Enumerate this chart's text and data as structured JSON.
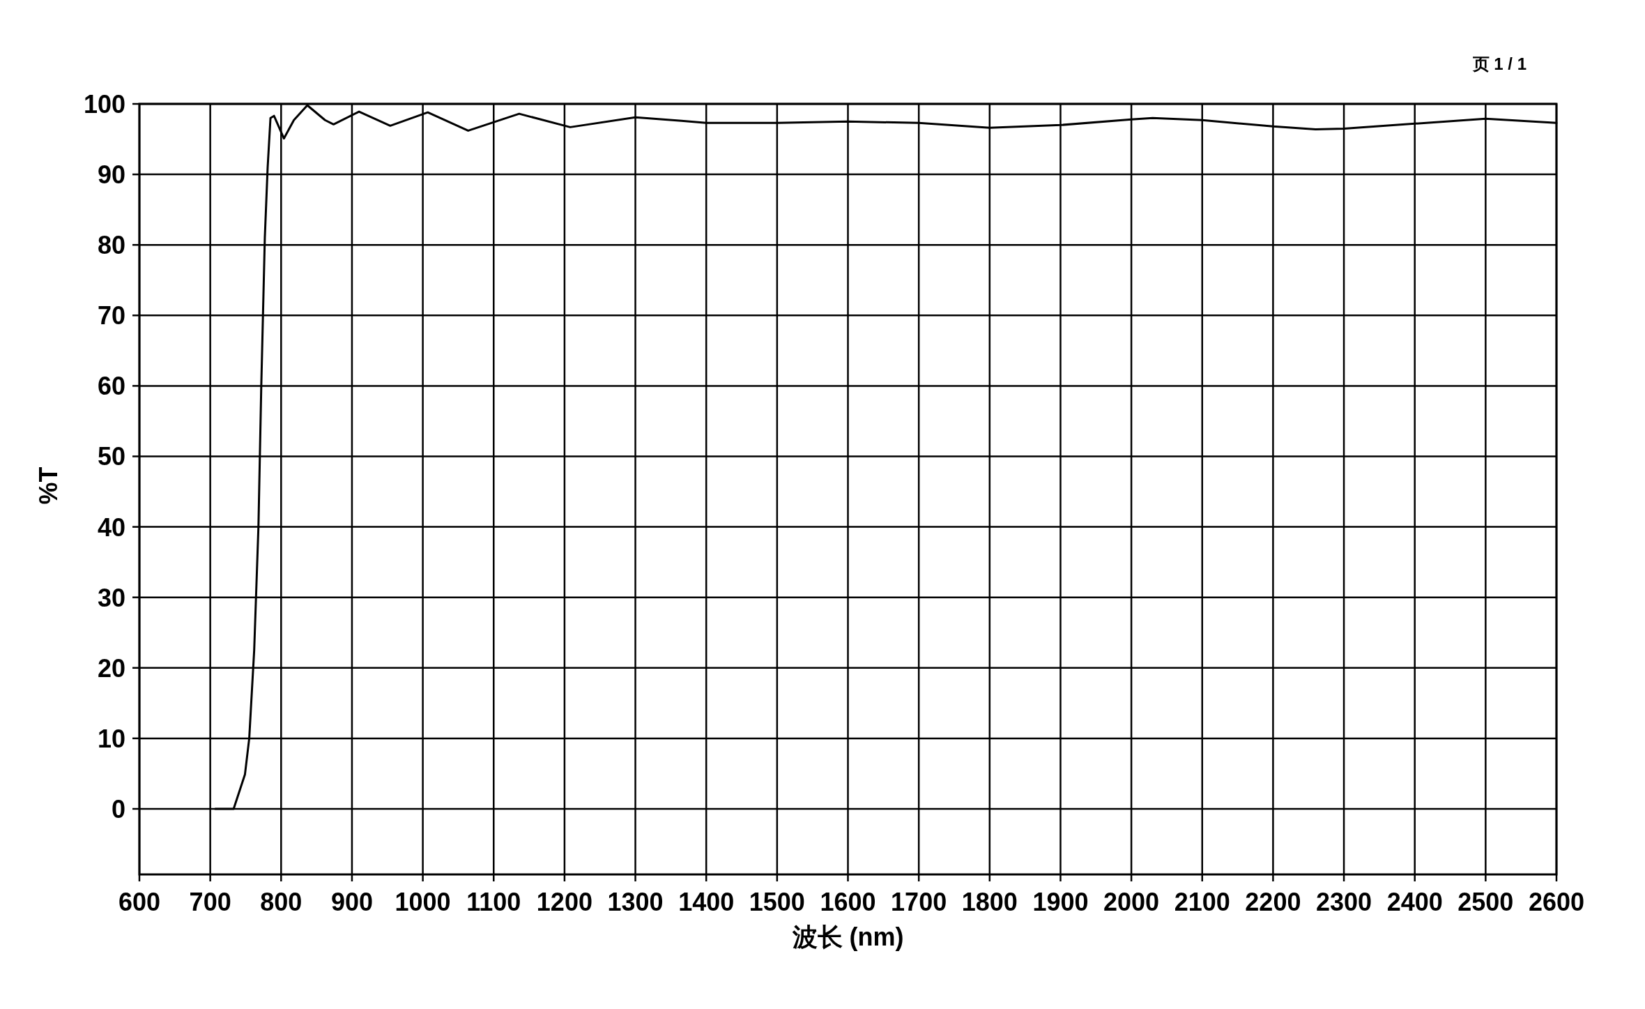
{
  "chart_data": {
    "type": "line",
    "xlabel": "波长 (nm)",
    "ylabel": "%T",
    "annotations": [
      "页 1 / 1"
    ],
    "series": [
      {
        "color": "#000000",
        "x": [
          707,
          733,
          749,
          755,
          762,
          768,
          772,
          777,
          781,
          785,
          790,
          804,
          818,
          837,
          862,
          874,
          910,
          954,
          1007,
          1064,
          1136,
          1208,
          1300,
          1365,
          1400,
          1500,
          1600,
          1700,
          1800,
          1900,
          2000,
          2030,
          2100,
          2200,
          2260,
          2300,
          2400,
          2500,
          2600
        ],
        "values": [
          0,
          0,
          4.9,
          10,
          22.5,
          40,
          60,
          81,
          91,
          98,
          98.3,
          95.1,
          97.7,
          99.8,
          97.7,
          97.1,
          98.9,
          96.9,
          98.8,
          96.2,
          98.6,
          96.7,
          98.1,
          97.6,
          97.3,
          97.3,
          97.5,
          97.3,
          96.6,
          97.0,
          97.8,
          98.0,
          97.7,
          96.8,
          96.4,
          96.5,
          97.2,
          97.9,
          97.3
        ]
      }
    ],
    "xlim": [
      600,
      2600
    ],
    "ylim": [
      -9.3,
      100
    ],
    "xticks": [
      600,
      700,
      800,
      900,
      1000,
      1100,
      1200,
      1300,
      1400,
      1500,
      1600,
      1700,
      1800,
      1900,
      2000,
      2100,
      2200,
      2300,
      2400,
      2500,
      2600
    ],
    "yticks": [
      0,
      10,
      20,
      30,
      40,
      50,
      60,
      70,
      80,
      90,
      100
    ],
    "grid": true,
    "marker": "none",
    "line_style": "solid"
  }
}
